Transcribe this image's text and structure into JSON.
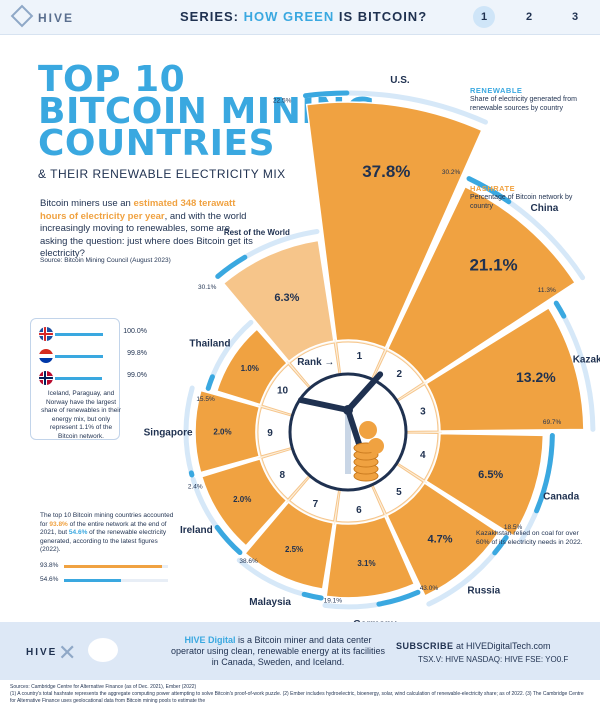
{
  "header": {
    "logo": "HIVE",
    "series_prefix": "SERIES: ",
    "series_highlight": "HOW GREEN",
    "series_suffix": " IS BITCOIN?",
    "pages": [
      "1",
      "2",
      "3"
    ]
  },
  "title": {
    "line1": "TOP 10",
    "line2": "BITCOIN MINING",
    "line3": "COUNTRIES",
    "subtitle": "& THEIR RENEWABLE ELECTRICITY MIX"
  },
  "intro": {
    "p1": "Bitcoin miners use an ",
    "p1_hl": "estimated 348 terawatt hours of electricity per year",
    "p2": ", and with the world increasingly moving to renewables, some are asking the question: just where does Bitcoin get its electricity?",
    "source": "Source: Bitcoin Mining Council (August 2023)"
  },
  "legend": {
    "renewable_head": "RENEWABLE",
    "renewable_text": "Share of electricity generated from renewable sources by country",
    "hashrate_head": "HASHRATE",
    "hashrate_text": "Percentage of Bitcoin network by country",
    "rank_label": "Rank"
  },
  "side_panel": {
    "flags": [
      {
        "country": "Iceland",
        "value": "100.0%",
        "pct": 100
      },
      {
        "country": "Paraguay",
        "value": "99.8%",
        "pct": 99.8
      },
      {
        "country": "Norway",
        "value": "99.0%",
        "pct": 99.0
      }
    ],
    "note": "Iceland, Paraguay, and Norway have the largest share of renewables in their energy mix, but only represent 1.1% of the Bitcoin network."
  },
  "summary": {
    "t1": "The top 10 Bitcoin mining countries accounted for ",
    "hl1": "93.8%",
    "t2": " of the entire network at the end of 2021, but ",
    "hl2": "54.6%",
    "t3": " of the renewable electricity generated, according to the latest figures (2022).",
    "bar1_label": "93.8%",
    "bar1_value": 93.8,
    "bar2_label": "54.6%",
    "bar2_value": 54.6,
    "bar1_color": "#f0a241",
    "bar2_color": "#3aa8e0"
  },
  "kz_note": "Kazakhstan relied on coal for over 60% of its electricity needs in 2022.",
  "colors": {
    "hashrate": "#f0a241",
    "hashrate_light": "#f6c58a",
    "renewable": "#3aa8e0",
    "renewable_track": "#d6e8f8",
    "navy": "#1f3150"
  },
  "chart_data": {
    "type": "polar-bar",
    "title": "TOP 10 BITCOIN MINING COUNTRIES",
    "subtitle": "& THEIR RENEWABLE ELECTRICITY MIX",
    "series": [
      {
        "name": "HASHRATE",
        "unit": "%"
      },
      {
        "name": "RENEWABLE",
        "unit": "%"
      }
    ],
    "categories": [
      {
        "rank": "1",
        "country": "U.S.",
        "hashrate": 37.8,
        "hashrate_label": "37.8%",
        "renewable": 22.5,
        "renewable_label": "22.5%"
      },
      {
        "rank": "2",
        "country": "China",
        "hashrate": 21.1,
        "hashrate_label": "21.1%",
        "renewable": 30.2,
        "renewable_label": "30.2%"
      },
      {
        "rank": "3",
        "country": "Kazakhstan",
        "hashrate": 13.2,
        "hashrate_label": "13.2%",
        "renewable": 11.3,
        "renewable_label": "11.3%"
      },
      {
        "rank": "4",
        "country": "Canada",
        "hashrate": 6.5,
        "hashrate_label": "6.5%",
        "renewable": 69.7,
        "renewable_label": "69.7%"
      },
      {
        "rank": "5",
        "country": "Russia",
        "hashrate": 4.7,
        "hashrate_label": "4.7%",
        "renewable": 18.5,
        "renewable_label": "18.5%"
      },
      {
        "rank": "6",
        "country": "Germany",
        "hashrate": 3.1,
        "hashrate_label": "3.1%",
        "renewable": 43.0,
        "renewable_label": "43.0%"
      },
      {
        "rank": "7",
        "country": "Malaysia",
        "hashrate": 2.5,
        "hashrate_label": "2.5%",
        "renewable": 19.1,
        "renewable_label": "19.1%"
      },
      {
        "rank": "8",
        "country": "Ireland",
        "hashrate": 2.0,
        "hashrate_label": "2.0%",
        "renewable": 38.6,
        "renewable_label": "38.6%"
      },
      {
        "rank": "9",
        "country": "Singapore",
        "hashrate": 2.0,
        "hashrate_label": "2.0%",
        "renewable": 2.4,
        "renewable_label": "2.4%"
      },
      {
        "rank": "10",
        "country": "Thailand",
        "hashrate": 1.0,
        "hashrate_label": "1.0%",
        "renewable": 15.5,
        "renewable_label": "15.5%"
      },
      {
        "rank": "",
        "country": "Rest of the World",
        "hashrate": 6.3,
        "hashrate_label": "6.3%",
        "renewable": 30.1,
        "renewable_label": "30.1%"
      }
    ]
  },
  "footer": {
    "logo": "HIVE",
    "desc_brand": "HIVE Digital",
    "desc_text": " is a Bitcoin miner and data center operator using clean, renewable energy at its facilities in Canada, Sweden, and Iceland.",
    "subscribe_bold": "SUBSCRIBE",
    "subscribe_text": " at HIVEDigitalTech.com",
    "tickers": "TSX.V: HIVE    NASDAQ: HIVE    FSE: YO0.F"
  },
  "notes": {
    "sources": "Sources: Cambridge Centre for Alternative Finance (as of Dec. 2021), Ember (2022)",
    "footnote": "(1) A country's total hashrate represents the aggregate computing power attempting to solve Bitcoin's proof-of-work puzzle. (2) Ember includes hydroelectric, bioenergy, solar, wind calculation of renewable-electricity share; as of 2022. (3) The Cambridge Centre for Alternative Finance uses geolocational data from Bitcoin mining pools to estimate the"
  }
}
